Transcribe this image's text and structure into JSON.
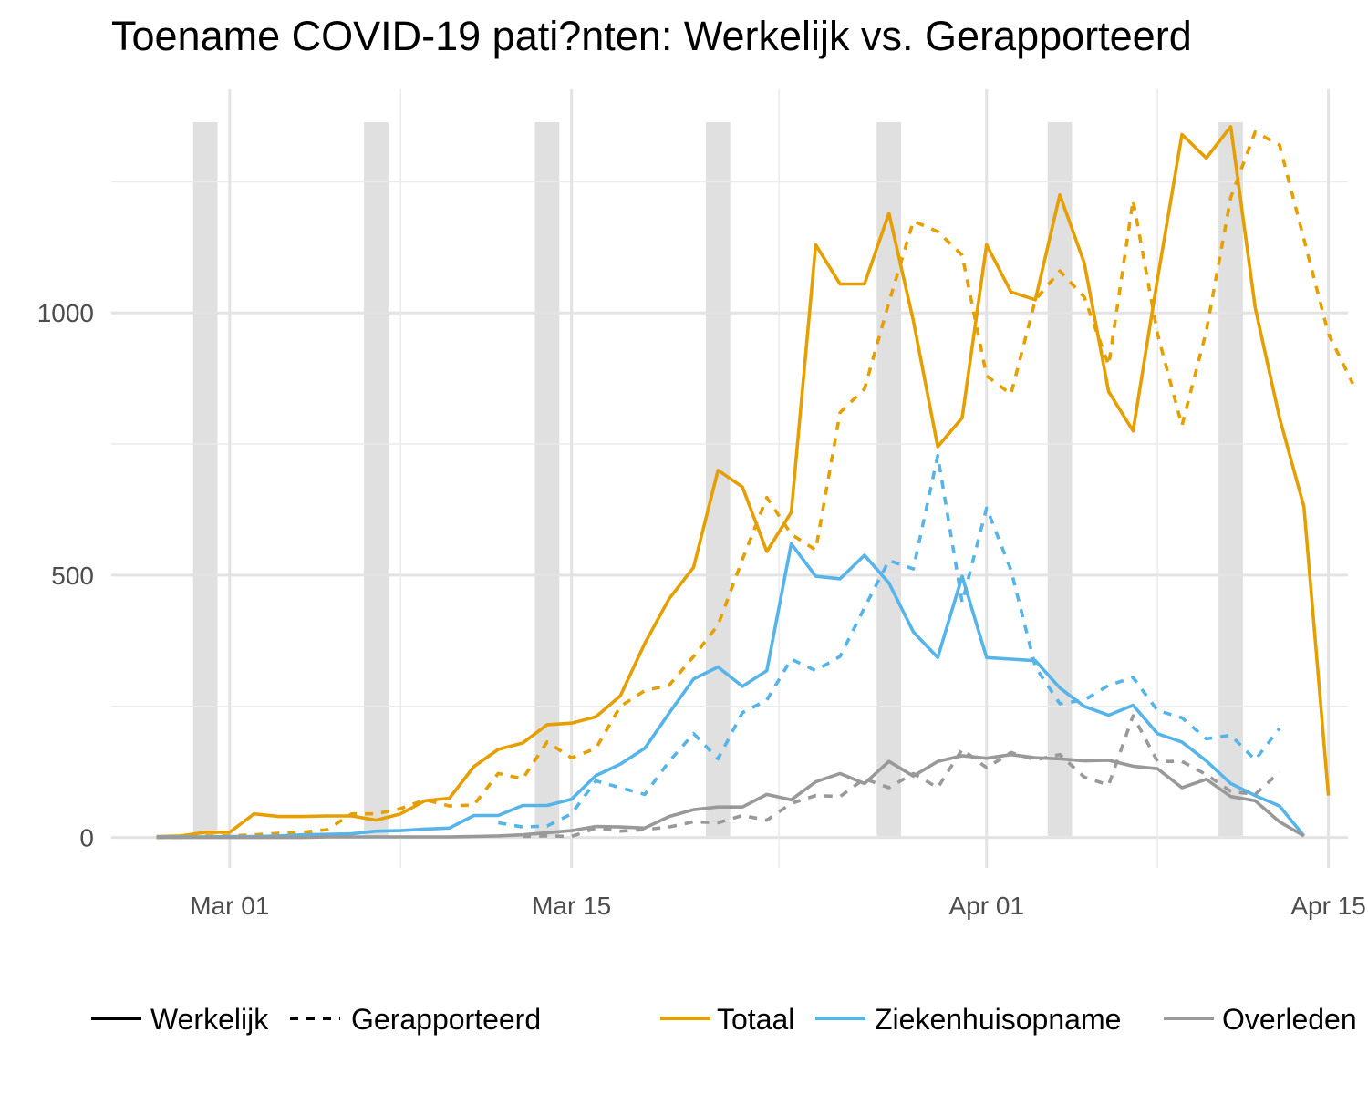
{
  "chart_data": {
    "type": "line",
    "title": "Toename COVID-19 pati?nten: Werkelijk vs. Gerapporteerd",
    "xlabel": "",
    "ylabel": "",
    "x_start": "Feb 27",
    "x_end": "Apr 14",
    "x_ticks": [
      {
        "label": "Mar 01",
        "date": "Mar 01"
      },
      {
        "label": "Mar 15",
        "date": "Mar 15"
      },
      {
        "label": "Apr 01",
        "date": "Apr 01"
      },
      {
        "label": "Apr 15",
        "date": "Apr 15"
      }
    ],
    "y_ticks": [
      0,
      500,
      1000
    ],
    "ylim": [
      -58,
      1440
    ],
    "grid": true,
    "weekend_bands": [
      "Feb 29",
      "Mar 07",
      "Mar 14",
      "Mar 21",
      "Mar 28",
      "Apr 04",
      "Apr 11"
    ],
    "legend_position": "bottom",
    "legend": {
      "linetypes": [
        {
          "label": "Werkelijk",
          "style": "solid"
        },
        {
          "label": "Gerapporteerd",
          "style": "dashed"
        }
      ],
      "categories": [
        {
          "label": "Totaal",
          "color": "#E69F00"
        },
        {
          "label": "Ziekenhuisopname",
          "color": "#56B4E9"
        },
        {
          "label": "Overleden",
          "color": "#999999"
        }
      ]
    },
    "series": [
      {
        "category": "Totaal",
        "linetype": "Werkelijk",
        "color": "#E69F00",
        "start_date": "Feb 27",
        "values": [
          2,
          3,
          10,
          10,
          45,
          40,
          40,
          41,
          41,
          33,
          45,
          70,
          75,
          135,
          168,
          180,
          215,
          218,
          230,
          270,
          370,
          455,
          515,
          700,
          668,
          545,
          620,
          1130,
          1055,
          1055,
          1190,
          985,
          745,
          800,
          1130,
          1040,
          1025,
          1225,
          1095,
          850,
          775,
          1065,
          1340,
          1295,
          1355,
          1010,
          800,
          630,
          80
        ]
      },
      {
        "category": "Totaal",
        "linetype": "Gerapporteerd",
        "color": "#E69F00",
        "start_date": "Feb 27",
        "values": [
          0,
          0,
          3,
          3,
          5,
          8,
          10,
          15,
          45,
          45,
          55,
          72,
          60,
          62,
          122,
          112,
          182,
          152,
          170,
          250,
          280,
          290,
          345,
          405,
          530,
          648,
          578,
          548,
          810,
          855,
          1020,
          1175,
          1155,
          1110,
          880,
          845,
          1025,
          1080,
          1030,
          900,
          1215,
          960,
          785,
          965,
          1220,
          1345,
          1320,
          1140,
          960,
          865
        ]
      },
      {
        "category": "Ziekenhuisopname",
        "linetype": "Werkelijk",
        "color": "#56B4E9",
        "start_date": "Feb 27",
        "values": [
          1,
          1,
          1,
          2,
          2,
          3,
          5,
          6,
          7,
          12,
          13,
          16,
          18,
          42,
          42,
          61,
          61,
          73,
          118,
          140,
          170,
          237,
          302,
          325,
          288,
          318,
          560,
          498,
          493,
          538,
          485,
          392,
          343,
          498,
          343,
          340,
          337,
          285,
          250,
          233,
          252,
          198,
          182,
          146,
          103,
          80,
          60,
          3
        ]
      },
      {
        "category": "Ziekenhuisopname",
        "linetype": "Gerapporteerd",
        "color": "#56B4E9",
        "start_date": "Mar 12",
        "values": [
          28,
          20,
          22,
          45,
          108,
          95,
          82,
          145,
          198,
          150,
          238,
          262,
          340,
          318,
          345,
          438,
          528,
          512,
          728,
          448,
          628,
          510,
          325,
          255,
          262,
          290,
          305,
          242,
          228,
          188,
          195,
          148,
          208
        ]
      },
      {
        "category": "Overleden",
        "linetype": "Werkelijk",
        "color": "#999999",
        "start_date": "Feb 27",
        "values": [
          0,
          0,
          0,
          0,
          0,
          0,
          0,
          1,
          1,
          1,
          1,
          1,
          1,
          2,
          3,
          5,
          9,
          13,
          21,
          20,
          18,
          40,
          53,
          58,
          58,
          82,
          72,
          106,
          122,
          103,
          145,
          117,
          145,
          156,
          151,
          158,
          152,
          150,
          146,
          147,
          136,
          131,
          95,
          111,
          78,
          70,
          30,
          3
        ]
      },
      {
        "category": "Overleden",
        "linetype": "Gerapporteerd",
        "color": "#999999",
        "start_date": "Mar 13",
        "values": [
          2,
          3,
          2,
          18,
          12,
          15,
          20,
          30,
          28,
          42,
          33,
          65,
          80,
          78,
          112,
          95,
          122,
          95,
          168,
          133,
          162,
          148,
          158,
          115,
          100,
          232,
          145,
          145,
          120,
          88,
          82,
          125
        ]
      }
    ]
  }
}
